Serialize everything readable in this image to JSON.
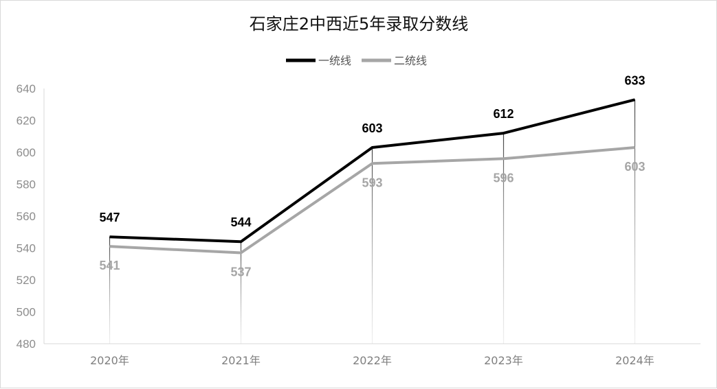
{
  "chart_data": {
    "type": "line",
    "title": "石家庄2中西近5年录取分数线",
    "categories": [
      "2020年",
      "2021年",
      "2022年",
      "2023年",
      "2024年"
    ],
    "series": [
      {
        "name": "一统线",
        "values": [
          547,
          544,
          603,
          612,
          633
        ],
        "color": "#000000"
      },
      {
        "name": "二统线",
        "values": [
          541,
          537,
          593,
          596,
          603
        ],
        "color": "#a6a6a6"
      }
    ],
    "ylim": [
      480,
      640
    ],
    "yticks": [
      "640",
      "620",
      "600",
      "580",
      "560",
      "540",
      "520",
      "500",
      "480"
    ],
    "legend_position": "top-center",
    "grid": false
  }
}
